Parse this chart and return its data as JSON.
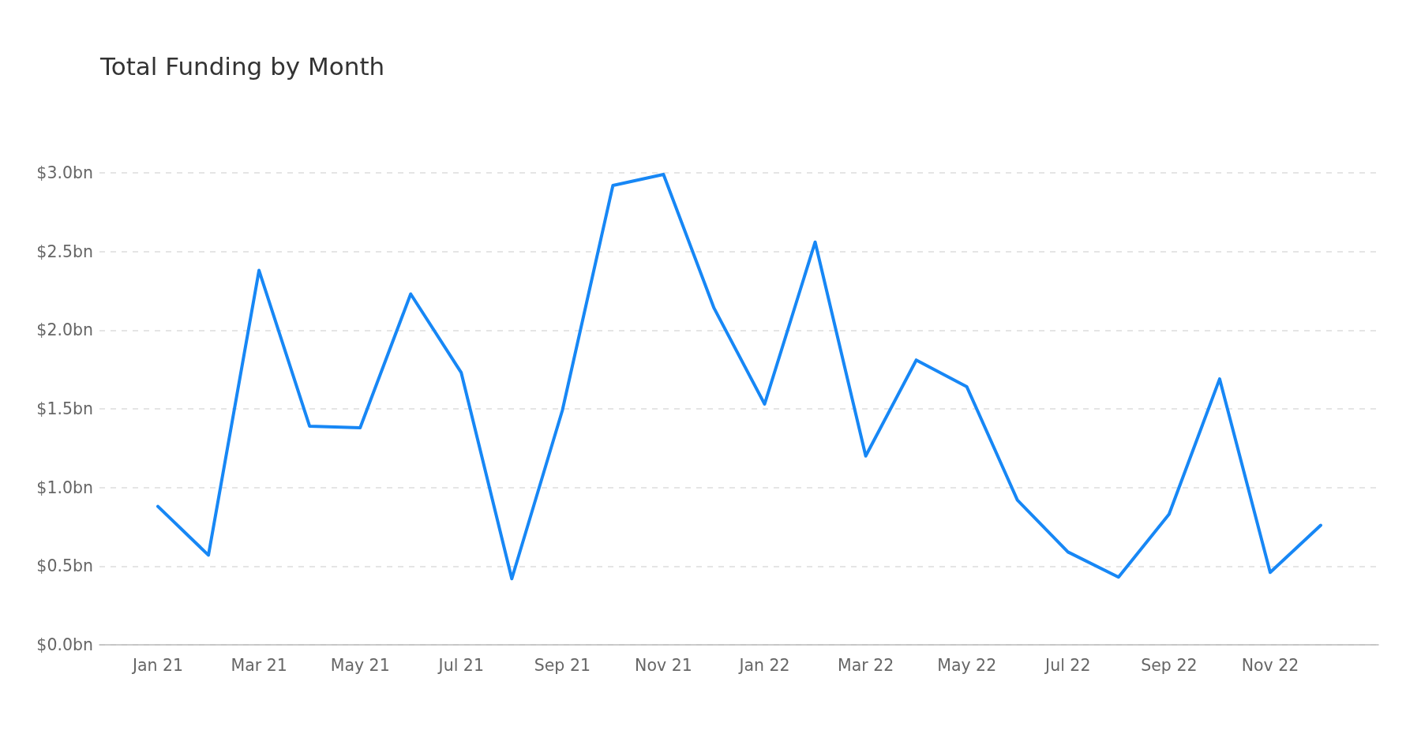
{
  "chart_data": {
    "type": "line",
    "title": "Total Funding by Month",
    "categories": [
      "Jan 21",
      null,
      "Mar 21",
      null,
      "May 21",
      null,
      "Jul 21",
      null,
      "Sep 21",
      null,
      "Nov 21",
      null,
      "Jan 22",
      null,
      "Mar 22",
      null,
      "May 22",
      null,
      "Jul 22",
      null,
      "Sep 22",
      null,
      "Nov 22",
      null
    ],
    "series": [
      {
        "color": "#1787f5",
        "values": [
          0.88,
          0.57,
          2.38,
          1.39,
          1.38,
          2.23,
          1.73,
          0.42,
          1.49,
          2.92,
          2.99,
          2.14,
          1.53,
          2.56,
          1.2,
          1.81,
          1.64,
          0.92,
          0.59,
          0.43,
          0.83,
          1.69,
          0.46,
          0.76
        ]
      }
    ],
    "ylim": [
      0,
      3
    ],
    "yticks": [
      {
        "value": 0,
        "label": "$0.0bn"
      },
      {
        "value": 0.5,
        "label": "$0.5bn"
      },
      {
        "value": 1,
        "label": "$1.0bn"
      },
      {
        "value": 1.5,
        "label": "$1.5bn"
      },
      {
        "value": 2,
        "label": "$2.0bn"
      },
      {
        "value": 2.5,
        "label": "$2.5bn"
      },
      {
        "value": 3,
        "label": "$3.0bn"
      }
    ],
    "grid": "y"
  }
}
